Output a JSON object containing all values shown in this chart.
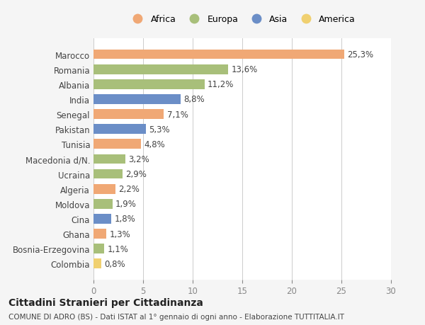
{
  "countries": [
    "Marocco",
    "Romania",
    "Albania",
    "India",
    "Senegal",
    "Pakistan",
    "Tunisia",
    "Macedonia d/N.",
    "Ucraina",
    "Algeria",
    "Moldova",
    "Cina",
    "Ghana",
    "Bosnia-Erzegovina",
    "Colombia"
  ],
  "values": [
    25.3,
    13.6,
    11.2,
    8.8,
    7.1,
    5.3,
    4.8,
    3.2,
    2.9,
    2.2,
    1.9,
    1.8,
    1.3,
    1.1,
    0.8
  ],
  "labels": [
    "25,3%",
    "13,6%",
    "11,2%",
    "8,8%",
    "7,1%",
    "5,3%",
    "4,8%",
    "3,2%",
    "2,9%",
    "2,2%",
    "1,9%",
    "1,8%",
    "1,3%",
    "1,1%",
    "0,8%"
  ],
  "continent": [
    "Africa",
    "Europa",
    "Europa",
    "Asia",
    "Africa",
    "Asia",
    "Africa",
    "Europa",
    "Europa",
    "Africa",
    "Europa",
    "Asia",
    "Africa",
    "Europa",
    "America"
  ],
  "colors": {
    "Africa": "#F0A875",
    "Europa": "#A8BF7A",
    "Asia": "#6B8EC7",
    "America": "#F0D070"
  },
  "legend_order": [
    "Africa",
    "Europa",
    "Asia",
    "America"
  ],
  "title": "Cittadini Stranieri per Cittadinanza",
  "subtitle": "COMUNE DI ADRO (BS) - Dati ISTAT al 1° gennaio di ogni anno - Elaborazione TUTTITALIA.IT",
  "xlim": [
    0,
    30
  ],
  "xticks": [
    0,
    5,
    10,
    15,
    20,
    25,
    30
  ],
  "background_color": "#f5f5f5",
  "bar_background": "#ffffff"
}
